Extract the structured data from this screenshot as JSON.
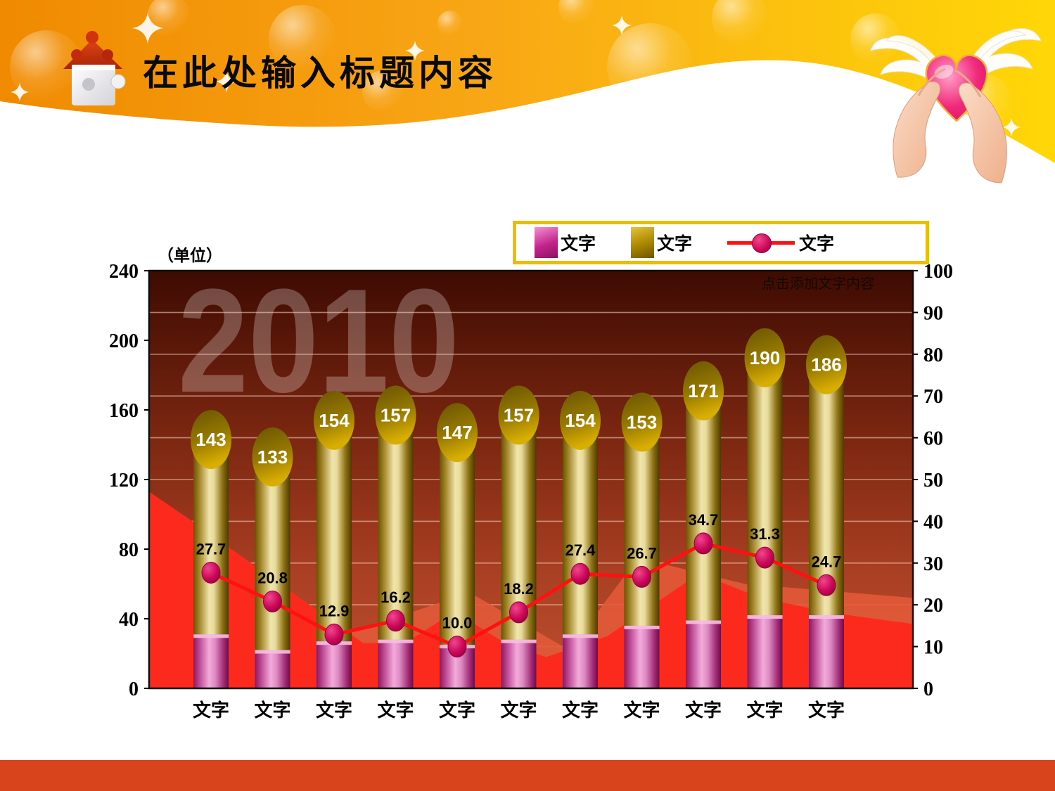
{
  "header": {
    "title": "在此处输入标题内容"
  },
  "chart_data": {
    "type": "combo",
    "unit_label": "（单位）",
    "note": "点击添加文字内容",
    "watermark": "2010",
    "categories": [
      "文字",
      "文字",
      "文字",
      "文字",
      "文字",
      "文字",
      "文字",
      "文字",
      "文字",
      "文字",
      "文字"
    ],
    "left_axis": {
      "min": 0,
      "max": 240,
      "ticks": [
        0,
        40,
        80,
        120,
        160,
        200,
        240
      ]
    },
    "right_axis": {
      "min": 0,
      "max": 100,
      "ticks": [
        0,
        10,
        20,
        30,
        40,
        50,
        60,
        70,
        80,
        90,
        100
      ]
    },
    "legend": [
      {
        "label": "文字",
        "series": "column-magenta"
      },
      {
        "label": "文字",
        "series": "column-gold"
      },
      {
        "label": "文字",
        "series": "line-red"
      }
    ],
    "series": [
      {
        "name": "文字",
        "type": "column",
        "axis": "left",
        "color": "#c2258c",
        "labeled": false,
        "values": [
          31,
          22,
          27,
          28,
          25,
          28,
          31,
          36,
          39,
          42,
          42
        ]
      },
      {
        "name": "文字",
        "type": "column",
        "axis": "left",
        "color": "#9f7f00",
        "labeled": true,
        "values": [
          143,
          133,
          154,
          157,
          147,
          157,
          154,
          153,
          171,
          190,
          186
        ]
      },
      {
        "name": "文字",
        "type": "line",
        "axis": "right",
        "color": "#ff1111",
        "labeled": true,
        "values": [
          27.7,
          20.8,
          12.9,
          16.2,
          10.0,
          18.2,
          27.4,
          26.7,
          34.7,
          31.3,
          24.7
        ]
      }
    ],
    "decor_areas": {
      "red_points": [
        [
          0,
          113
        ],
        [
          0.06,
          95
        ],
        [
          0.28,
          26
        ],
        [
          0.335,
          26
        ],
        [
          0.4,
          44
        ],
        [
          0.47,
          25
        ],
        [
          0.52,
          18
        ],
        [
          0.6,
          30
        ],
        [
          0.72,
          66
        ],
        [
          0.8,
          52
        ],
        [
          0.9,
          43
        ],
        [
          1,
          37
        ]
      ],
      "salmon_points": [
        [
          0,
          95
        ],
        [
          0.25,
          30
        ],
        [
          0.42,
          55
        ],
        [
          0.55,
          22
        ],
        [
          0.64,
          75
        ],
        [
          0.78,
          60
        ],
        [
          1,
          52
        ]
      ]
    },
    "colors": {
      "area_red": "#fb2a1c",
      "area_salmon": "#e25a39",
      "line": "#fe1111",
      "grid": "#ffd9c4"
    }
  }
}
